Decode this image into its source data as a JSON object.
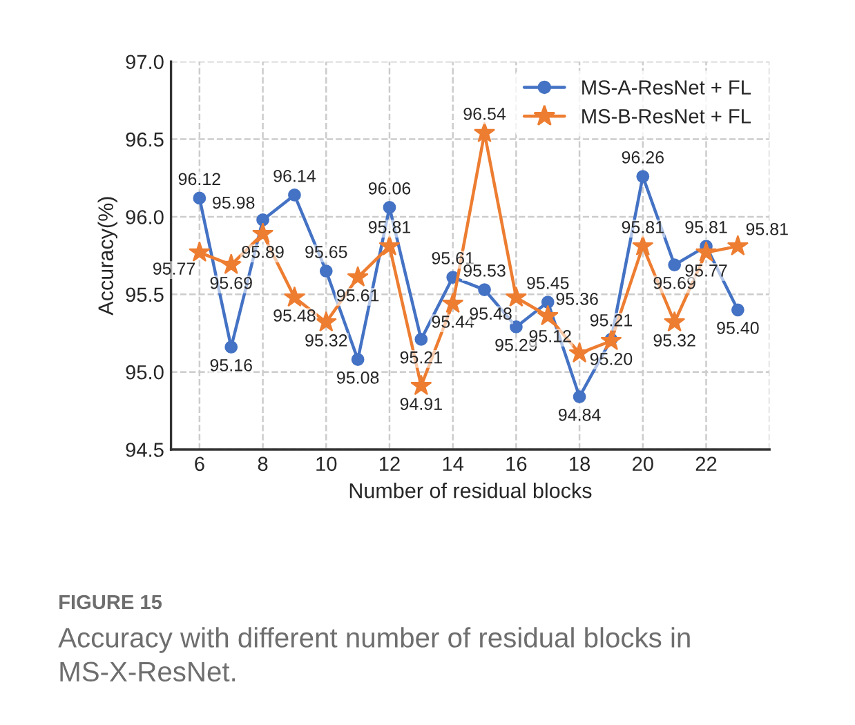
{
  "chart_data": {
    "type": "line",
    "xlabel": "Number of residual blocks",
    "ylabel": "Accuracy(%)",
    "x": [
      6,
      7,
      8,
      9,
      10,
      11,
      12,
      13,
      14,
      15,
      16,
      17,
      18,
      19,
      20,
      21,
      22,
      23
    ],
    "series": [
      {
        "name": "MS-A-ResNet + FL",
        "color": "#4472c4",
        "marker": "circle",
        "values": [
          96.12,
          95.16,
          95.98,
          96.14,
          95.65,
          95.08,
          96.06,
          95.21,
          95.61,
          95.53,
          95.29,
          95.45,
          94.84,
          95.21,
          96.26,
          95.69,
          95.81,
          95.4
        ],
        "value_labels": [
          "96.12",
          "95.16",
          "95.98",
          "96.14",
          "95.65",
          "95.08",
          "96.06",
          "95.21",
          "95.61",
          "95.53",
          "95.29",
          "95.45",
          "94.84",
          "95.21",
          "96.26",
          "95.69",
          "95.81",
          "95.40"
        ]
      },
      {
        "name": "MS-B-ResNet + FL",
        "color": "#ed7d31",
        "marker": "star",
        "values": [
          95.77,
          95.69,
          95.89,
          95.48,
          95.32,
          95.61,
          95.81,
          94.91,
          95.44,
          96.54,
          95.48,
          95.36,
          95.12,
          95.2,
          95.81,
          95.32,
          95.77,
          95.81
        ],
        "value_labels": [
          "95.77",
          "95.69",
          "95.89",
          "95.48",
          "95.32",
          "95.61",
          "95.81",
          "94.91",
          "95.44",
          "96.54",
          "95.48",
          "95.36",
          "95.12",
          "95.20",
          "95.81",
          "95.32",
          "95.77",
          "95.81"
        ]
      }
    ],
    "xlim": [
      5.1,
      24
    ],
    "xticks": [
      6,
      8,
      10,
      12,
      14,
      16,
      18,
      20,
      22,
      {
        "value": 24,
        "label": null
      }
    ],
    "ylim": [
      94.5,
      97.0
    ],
    "yticks": [
      {
        "value": 94.5,
        "label": "94.5"
      },
      {
        "value": 95.0,
        "label": "95.0"
      },
      {
        "value": 95.5,
        "label": "95.5"
      },
      {
        "value": 96.0,
        "label": "96.0"
      },
      {
        "value": 96.5,
        "label": "96.5"
      },
      {
        "value": 97.0,
        "label": "97.0"
      }
    ],
    "grid": true,
    "legend": "top right",
    "line_style": "solid",
    "annotations": [
      "FIGURE 15",
      "Accuracy with different number of residual blocks in MS-X-ResNet."
    ]
  }
}
